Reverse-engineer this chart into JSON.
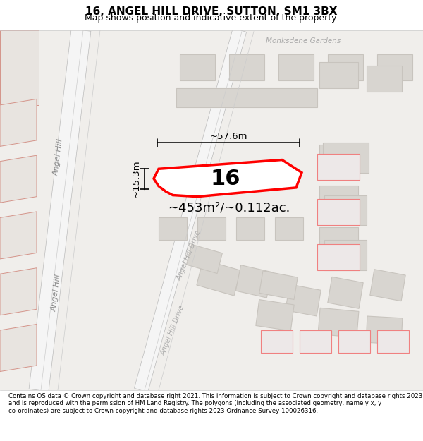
{
  "title": "16, ANGEL HILL DRIVE, SUTTON, SM1 3BX",
  "subtitle": "Map shows position and indicative extent of the property.",
  "footer": "Contains OS data © Crown copyright and database right 2021. This information is subject to Crown copyright and database rights 2023 and is reproduced with the permission of HM Land Registry. The polygons (including the associated geometry, namely x, y co-ordinates) are subject to Crown copyright and database rights 2023 Ordnance Survey 100026316.",
  "map_bg": "#f0eeeb",
  "building_fill": "#d8d5d0",
  "building_edge": "#c8c4be",
  "road_fill": "#ffffff",
  "highlight_fill": "#ffffff",
  "highlight_edge": "#ff0000",
  "highlight_lw": 2.5,
  "dim_line_color": "#000000",
  "area_text": "~453m²/~0.112ac.",
  "width_text": "~57.6m",
  "height_text": "~15.3m",
  "property_label": "16",
  "title_fontsize": 11,
  "subtitle_fontsize": 9,
  "footer_fontsize": 6.2
}
